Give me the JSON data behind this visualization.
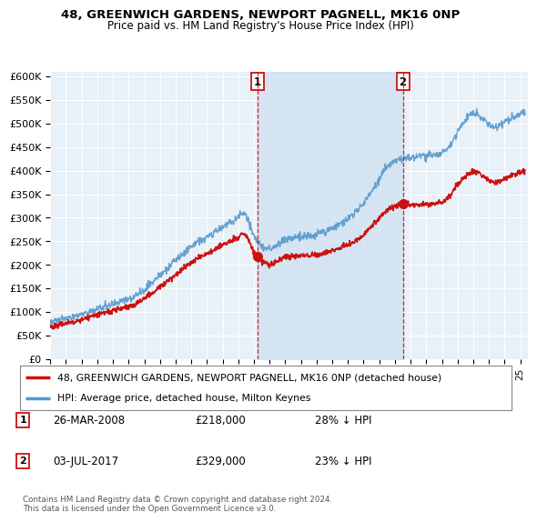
{
  "title": "48, GREENWICH GARDENS, NEWPORT PAGNELL, MK16 0NP",
  "subtitle": "Price paid vs. HM Land Registry's House Price Index (HPI)",
  "yticks": [
    0,
    50000,
    100000,
    150000,
    200000,
    250000,
    300000,
    350000,
    400000,
    450000,
    500000,
    550000,
    600000
  ],
  "ytick_labels": [
    "£0",
    "£50K",
    "£100K",
    "£150K",
    "£200K",
    "£250K",
    "£300K",
    "£350K",
    "£400K",
    "£450K",
    "£500K",
    "£550K",
    "£600K"
  ],
  "xlim_start": 1995.0,
  "xlim_end": 2025.5,
  "ylim_min": 0,
  "ylim_max": 610000,
  "hpi_color": "#5599cc",
  "hpi_fill_color": "#cce0f0",
  "price_color": "#cc1111",
  "marker1_x": 2008.23,
  "marker1_y": 218000,
  "marker2_x": 2017.5,
  "marker2_y": 329000,
  "marker1_label": "1",
  "marker2_label": "2",
  "legend_entry1": "48, GREENWICH GARDENS, NEWPORT PAGNELL, MK16 0NP (detached house)",
  "legend_entry2": "HPI: Average price, detached house, Milton Keynes",
  "note1_num": "1",
  "note1_date": "26-MAR-2008",
  "note1_price": "£218,000",
  "note1_pct": "28% ↓ HPI",
  "note2_num": "2",
  "note2_date": "03-JUL-2017",
  "note2_price": "£329,000",
  "note2_pct": "23% ↓ HPI",
  "footer": "Contains HM Land Registry data © Crown copyright and database right 2024.\nThis data is licensed under the Open Government Licence v3.0.",
  "bg_color": "#e8f0f8",
  "plot_bg": "#eef4fa"
}
